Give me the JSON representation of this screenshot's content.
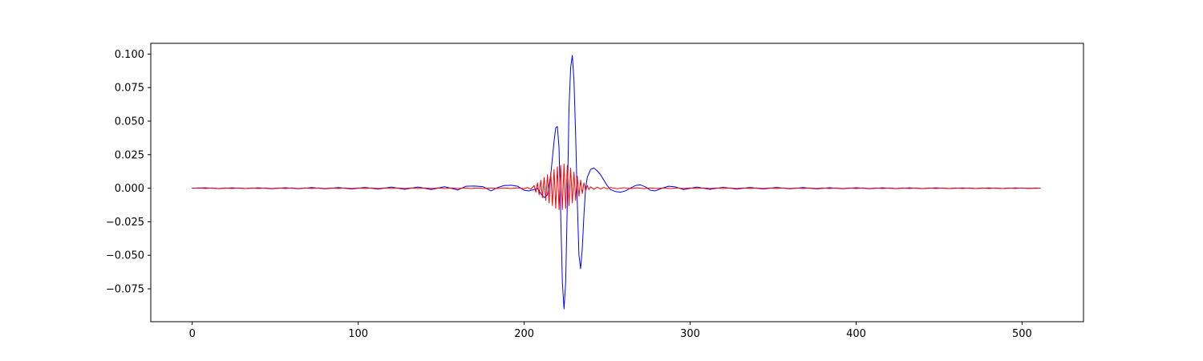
{
  "chart_data": {
    "type": "line",
    "title": "",
    "xlabel": "",
    "ylabel": "",
    "xlim": [
      -25,
      537
    ],
    "ylim": [
      -0.0995,
      0.108
    ],
    "grid": false,
    "legend": "none",
    "x_ticks": [
      0,
      100,
      200,
      300,
      400,
      500
    ],
    "x_tick_labels": [
      "0",
      "100",
      "200",
      "300",
      "400",
      "500"
    ],
    "y_ticks": [
      0.1,
      0.075,
      0.05,
      0.025,
      0.0,
      -0.025,
      -0.05,
      -0.075
    ],
    "y_tick_labels": [
      "0.100",
      "0.075",
      "0.050",
      "0.025",
      "0.000",
      "−0.025",
      "−0.050",
      "−0.075"
    ],
    "series": [
      {
        "color": "#0000ff",
        "points": [
          [
            0,
            0.0
          ],
          [
            8,
            0.0003
          ],
          [
            16,
            -0.0003
          ],
          [
            24,
            0.0003
          ],
          [
            32,
            -0.0002
          ],
          [
            40,
            0.0003
          ],
          [
            48,
            -0.0004
          ],
          [
            56,
            0.0004
          ],
          [
            64,
            -0.0004
          ],
          [
            72,
            0.0005
          ],
          [
            80,
            -0.0005
          ],
          [
            88,
            0.0005
          ],
          [
            96,
            -0.0006
          ],
          [
            104,
            0.0006
          ],
          [
            112,
            -0.0007
          ],
          [
            120,
            0.0008
          ],
          [
            128,
            -0.0008
          ],
          [
            136,
            0.0009
          ],
          [
            144,
            -0.001
          ],
          [
            152,
            0.0011
          ],
          [
            160,
            -0.0013
          ],
          [
            165,
            0.0015
          ],
          [
            170,
            0.0016
          ],
          [
            175,
            0.0012
          ],
          [
            180,
            -0.002
          ],
          [
            184,
            0.0005
          ],
          [
            188,
            0.002
          ],
          [
            192,
            0.0022
          ],
          [
            196,
            0.0015
          ],
          [
            200,
            -0.0015
          ],
          [
            203,
            -0.002
          ],
          [
            206,
            -0.001
          ],
          [
            208,
            0.0
          ],
          [
            210,
            -0.004
          ],
          [
            212,
            -0.007
          ],
          [
            214,
            -0.005
          ],
          [
            216,
            0.01
          ],
          [
            218,
            0.035
          ],
          [
            219,
            0.045
          ],
          [
            220,
            0.046
          ],
          [
            221,
            0.03
          ],
          [
            222,
            -0.02
          ],
          [
            223,
            -0.07
          ],
          [
            224,
            -0.09
          ],
          [
            225,
            -0.07
          ],
          [
            226,
            -0.01
          ],
          [
            227,
            0.06
          ],
          [
            228,
            0.09
          ],
          [
            229,
            0.099
          ],
          [
            230,
            0.08
          ],
          [
            231,
            0.04
          ],
          [
            232,
            -0.01
          ],
          [
            233,
            -0.05
          ],
          [
            234,
            -0.06
          ],
          [
            235,
            -0.045
          ],
          [
            236,
            -0.02
          ],
          [
            237,
            0.0
          ],
          [
            238,
            0.008
          ],
          [
            240,
            0.014
          ],
          [
            242,
            0.015
          ],
          [
            244,
            0.013
          ],
          [
            246,
            0.01
          ],
          [
            248,
            0.006
          ],
          [
            250,
            0.002
          ],
          [
            252,
            -0.001
          ],
          [
            255,
            -0.0025
          ],
          [
            258,
            -0.003
          ],
          [
            261,
            -0.002
          ],
          [
            264,
            0.0
          ],
          [
            267,
            0.002
          ],
          [
            270,
            0.0025
          ],
          [
            273,
            0.001
          ],
          [
            276,
            -0.0015
          ],
          [
            279,
            -0.002
          ],
          [
            283,
            0.0
          ],
          [
            287,
            0.0015
          ],
          [
            291,
            0.001
          ],
          [
            296,
            -0.001
          ],
          [
            304,
            0.0008
          ],
          [
            312,
            -0.0008
          ],
          [
            320,
            0.0007
          ],
          [
            328,
            -0.0007
          ],
          [
            336,
            0.0006
          ],
          [
            344,
            -0.0006
          ],
          [
            352,
            0.0006
          ],
          [
            360,
            -0.0005
          ],
          [
            368,
            0.0005
          ],
          [
            376,
            -0.0005
          ],
          [
            384,
            0.0004
          ],
          [
            392,
            -0.0004
          ],
          [
            400,
            0.0004
          ],
          [
            408,
            -0.0004
          ],
          [
            416,
            0.0003
          ],
          [
            424,
            -0.0003
          ],
          [
            432,
            0.0003
          ],
          [
            440,
            -0.0003
          ],
          [
            448,
            0.0003
          ],
          [
            456,
            -0.0002
          ],
          [
            464,
            0.0002
          ],
          [
            472,
            -0.0002
          ],
          [
            480,
            0.0002
          ],
          [
            488,
            -0.0002
          ],
          [
            496,
            0.0002
          ],
          [
            504,
            -0.0001
          ],
          [
            511,
            0.0
          ]
        ]
      },
      {
        "color": "#ff0000",
        "points": [
          [
            0,
            0.0
          ],
          [
            4,
            0.0002
          ],
          [
            8,
            -0.0002
          ],
          [
            12,
            0.0002
          ],
          [
            16,
            -0.0002
          ],
          [
            20,
            0.0002
          ],
          [
            24,
            -0.0002
          ],
          [
            28,
            0.0002
          ],
          [
            32,
            -0.0002
          ],
          [
            36,
            0.0002
          ],
          [
            40,
            -0.0002
          ],
          [
            44,
            0.0002
          ],
          [
            48,
            -0.0002
          ],
          [
            52,
            0.0002
          ],
          [
            56,
            -0.0002
          ],
          [
            60,
            0.0002
          ],
          [
            64,
            -0.0002
          ],
          [
            68,
            0.0002
          ],
          [
            72,
            -0.0002
          ],
          [
            76,
            0.0002
          ],
          [
            80,
            -0.0002
          ],
          [
            84,
            0.0002
          ],
          [
            88,
            -0.0002
          ],
          [
            92,
            0.0002
          ],
          [
            96,
            -0.0002
          ],
          [
            100,
            0.0002
          ],
          [
            104,
            -0.0002
          ],
          [
            108,
            0.0002
          ],
          [
            112,
            -0.0002
          ],
          [
            116,
            0.0002
          ],
          [
            120,
            -0.0002
          ],
          [
            124,
            0.0002
          ],
          [
            128,
            -0.0002
          ],
          [
            132,
            0.0002
          ],
          [
            136,
            -0.0002
          ],
          [
            140,
            0.0002
          ],
          [
            144,
            -0.0002
          ],
          [
            148,
            0.0002
          ],
          [
            152,
            -0.0002
          ],
          [
            156,
            0.0002
          ],
          [
            160,
            -0.0002
          ],
          [
            164,
            0.0002
          ],
          [
            168,
            -0.0002
          ],
          [
            172,
            0.0002
          ],
          [
            176,
            -0.0002
          ],
          [
            180,
            0.0002
          ],
          [
            184,
            -0.0002
          ],
          [
            188,
            0.0002
          ],
          [
            192,
            -0.0002
          ],
          [
            196,
            0.0003
          ],
          [
            200,
            -0.0003
          ],
          [
            202,
            0.0005
          ],
          [
            204,
            -0.0008
          ],
          [
            206,
            0.002
          ],
          [
            207,
            -0.003
          ],
          [
            208,
            0.004
          ],
          [
            209,
            -0.005
          ],
          [
            210,
            0.006
          ],
          [
            211,
            -0.007
          ],
          [
            212,
            0.008
          ],
          [
            213,
            -0.009
          ],
          [
            214,
            0.01
          ],
          [
            215,
            -0.011
          ],
          [
            216,
            0.012
          ],
          [
            217,
            -0.013
          ],
          [
            218,
            0.014
          ],
          [
            219,
            -0.015
          ],
          [
            220,
            0.016
          ],
          [
            221,
            -0.016
          ],
          [
            222,
            0.017
          ],
          [
            223,
            -0.016
          ],
          [
            224,
            0.018
          ],
          [
            225,
            -0.015
          ],
          [
            226,
            0.017
          ],
          [
            227,
            -0.013
          ],
          [
            228,
            0.015
          ],
          [
            229,
            -0.011
          ],
          [
            230,
            0.012
          ],
          [
            231,
            -0.009
          ],
          [
            232,
            0.009
          ],
          [
            233,
            -0.006
          ],
          [
            234,
            0.006
          ],
          [
            235,
            -0.004
          ],
          [
            236,
            0.004
          ],
          [
            237,
            -0.002
          ],
          [
            238,
            0.002
          ],
          [
            239,
            -0.001
          ],
          [
            240,
            0.001
          ],
          [
            242,
            -0.0008
          ],
          [
            244,
            0.0008
          ],
          [
            246,
            -0.0006
          ],
          [
            248,
            0.0006
          ],
          [
            250,
            -0.0005
          ],
          [
            252,
            0.0005
          ],
          [
            256,
            -0.0004
          ],
          [
            260,
            0.0004
          ],
          [
            264,
            -0.0003
          ],
          [
            268,
            0.0003
          ],
          [
            272,
            -0.0003
          ],
          [
            276,
            0.0002
          ],
          [
            280,
            -0.0002
          ],
          [
            284,
            0.0002
          ],
          [
            288,
            -0.0002
          ],
          [
            292,
            0.0002
          ],
          [
            296,
            -0.0002
          ],
          [
            300,
            0.0002
          ],
          [
            304,
            -0.0002
          ],
          [
            308,
            0.0002
          ],
          [
            312,
            -0.0002
          ],
          [
            316,
            0.0002
          ],
          [
            320,
            -0.0002
          ],
          [
            324,
            0.0002
          ],
          [
            328,
            -0.0002
          ],
          [
            332,
            0.0002
          ],
          [
            336,
            -0.0002
          ],
          [
            340,
            0.0002
          ],
          [
            344,
            -0.0002
          ],
          [
            348,
            0.0002
          ],
          [
            352,
            -0.0002
          ],
          [
            356,
            0.0002
          ],
          [
            360,
            -0.0002
          ],
          [
            364,
            0.0002
          ],
          [
            368,
            -0.0002
          ],
          [
            372,
            0.0002
          ],
          [
            376,
            -0.0002
          ],
          [
            380,
            0.0002
          ],
          [
            384,
            -0.0002
          ],
          [
            388,
            0.0002
          ],
          [
            392,
            -0.0002
          ],
          [
            396,
            0.0002
          ],
          [
            400,
            -0.0002
          ],
          [
            404,
            0.0002
          ],
          [
            408,
            -0.0002
          ],
          [
            412,
            0.0002
          ],
          [
            416,
            -0.0002
          ],
          [
            420,
            0.0002
          ],
          [
            424,
            -0.0002
          ],
          [
            428,
            0.0002
          ],
          [
            432,
            -0.0002
          ],
          [
            436,
            0.0002
          ],
          [
            440,
            -0.0002
          ],
          [
            444,
            0.0002
          ],
          [
            448,
            -0.0002
          ],
          [
            452,
            0.0002
          ],
          [
            456,
            -0.0002
          ],
          [
            460,
            0.0002
          ],
          [
            464,
            -0.0002
          ],
          [
            468,
            0.0002
          ],
          [
            472,
            -0.0002
          ],
          [
            476,
            0.0002
          ],
          [
            480,
            -0.0002
          ],
          [
            484,
            0.0002
          ],
          [
            488,
            -0.0002
          ],
          [
            492,
            0.0002
          ],
          [
            496,
            -0.0002
          ],
          [
            500,
            0.0002
          ],
          [
            504,
            -0.0002
          ],
          [
            508,
            0.0002
          ],
          [
            511,
            0.0
          ]
        ]
      }
    ]
  }
}
